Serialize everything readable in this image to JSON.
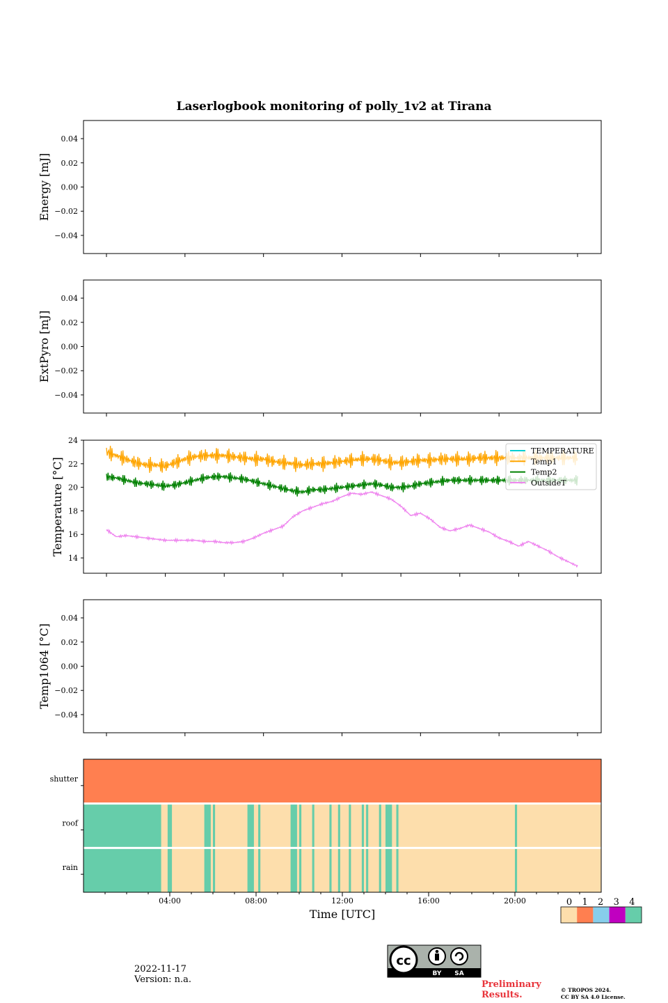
{
  "title": "Laserlogbook monitoring of polly_1v2 at Tirana",
  "chart_data": [
    {
      "type": "line",
      "ylabel": "Energy [mJ]",
      "ylim": [
        -0.055,
        0.055
      ],
      "yticks": [
        "0.04",
        "0.02",
        "0.00",
        "−0.02",
        "−0.04"
      ],
      "ytick_values": [
        0.04,
        0.02,
        0.0,
        -0.02,
        -0.04
      ],
      "series": []
    },
    {
      "type": "line",
      "ylabel": "ExtPyro [mJ]",
      "ylim": [
        -0.055,
        0.055
      ],
      "yticks": [
        "0.04",
        "0.02",
        "0.00",
        "−0.02",
        "−0.04"
      ],
      "ytick_values": [
        0.04,
        0.02,
        0.0,
        -0.02,
        -0.04
      ],
      "series": []
    },
    {
      "type": "line",
      "ylabel": "Temperature [°C]",
      "ylim": [
        12.7,
        24.0
      ],
      "yticks": [
        "24",
        "22",
        "20",
        "18",
        "16",
        "14"
      ],
      "ytick_values": [
        24,
        22,
        20,
        18,
        16,
        14
      ],
      "legend": "top-right",
      "series": [
        {
          "name": "TEMPERATURE",
          "color": "#00ced1",
          "x_hours": [],
          "values": []
        },
        {
          "name": "Temp1",
          "color": "#ffa500",
          "x_hours": [
            0.0,
            0.5,
            1.0,
            1.5,
            2.0,
            2.5,
            3.0,
            3.5,
            4.0,
            4.5,
            5.0,
            5.5,
            6.0,
            6.5,
            7.0,
            7.5,
            8.0,
            8.5,
            9.0,
            9.5,
            10.0,
            10.5,
            11.0,
            11.5,
            12.0,
            12.5,
            13.0,
            13.5,
            14.0,
            14.5,
            15.0,
            15.5,
            16.0,
            16.5,
            17.0,
            17.5,
            18.0,
            18.5,
            19.0,
            19.5,
            20.0,
            20.5,
            21.0,
            21.5,
            22.0,
            22.5,
            23.0,
            23.5,
            24.0
          ],
          "values": [
            23.0,
            22.7,
            22.4,
            22.1,
            21.9,
            21.9,
            21.8,
            22.1,
            22.4,
            22.6,
            22.7,
            22.7,
            22.7,
            22.6,
            22.5,
            22.4,
            22.4,
            22.2,
            22.1,
            22.0,
            21.9,
            22.0,
            22.0,
            22.1,
            22.2,
            22.3,
            22.4,
            22.4,
            22.3,
            22.1,
            22.1,
            22.2,
            22.3,
            22.3,
            22.4,
            22.4,
            22.4,
            22.4,
            22.5,
            22.5,
            22.5,
            22.5,
            22.5,
            22.5,
            22.5,
            22.5,
            22.5,
            22.5,
            22.5
          ]
        },
        {
          "name": "Temp2",
          "color": "#008000",
          "x_hours": [
            0.0,
            0.5,
            1.0,
            1.5,
            2.0,
            2.5,
            3.0,
            3.5,
            4.0,
            4.5,
            5.0,
            5.5,
            6.0,
            6.5,
            7.0,
            7.5,
            8.0,
            8.5,
            9.0,
            9.5,
            10.0,
            10.5,
            11.0,
            11.5,
            12.0,
            12.5,
            13.0,
            13.5,
            14.0,
            14.5,
            15.0,
            15.5,
            16.0,
            16.5,
            17.0,
            17.5,
            18.0,
            18.5,
            19.0,
            19.5,
            20.0,
            20.5,
            21.0,
            21.5,
            22.0,
            22.5,
            23.0,
            23.5,
            24.0
          ],
          "values": [
            20.9,
            20.8,
            20.6,
            20.4,
            20.3,
            20.2,
            20.1,
            20.2,
            20.4,
            20.6,
            20.8,
            20.9,
            20.9,
            20.8,
            20.7,
            20.5,
            20.3,
            20.1,
            19.9,
            19.7,
            19.6,
            19.8,
            19.8,
            19.9,
            20.0,
            20.1,
            20.2,
            20.3,
            20.2,
            20.0,
            20.0,
            20.1,
            20.3,
            20.4,
            20.5,
            20.6,
            20.6,
            20.6,
            20.6,
            20.6,
            20.6,
            20.6,
            20.6,
            20.6,
            20.6,
            20.6,
            20.6,
            20.6,
            20.6
          ]
        },
        {
          "name": "OutsideT",
          "color": "#ee82ee",
          "x_hours": [
            0.0,
            0.5,
            1.0,
            1.5,
            2.0,
            2.5,
            3.0,
            3.5,
            4.0,
            4.5,
            5.0,
            5.5,
            6.0,
            6.5,
            7.0,
            7.5,
            8.0,
            8.5,
            9.0,
            9.5,
            10.0,
            10.5,
            11.0,
            11.5,
            12.0,
            12.5,
            13.0,
            13.5,
            14.0,
            14.5,
            15.0,
            15.5,
            16.0,
            16.5,
            17.0,
            17.5,
            18.0,
            18.5,
            19.0,
            19.5,
            20.0,
            20.5,
            21.0,
            21.5,
            22.0,
            22.5,
            23.0,
            23.5,
            24.0
          ],
          "values": [
            16.4,
            15.8,
            15.9,
            15.8,
            15.7,
            15.6,
            15.5,
            15.5,
            15.5,
            15.5,
            15.4,
            15.4,
            15.3,
            15.3,
            15.4,
            15.7,
            16.1,
            16.4,
            16.7,
            17.5,
            18.0,
            18.3,
            18.6,
            18.8,
            19.2,
            19.5,
            19.4,
            19.6,
            19.3,
            19.0,
            18.4,
            17.6,
            17.8,
            17.3,
            16.6,
            16.3,
            16.5,
            16.8,
            16.5,
            16.2,
            15.7,
            15.4,
            15.0,
            15.4,
            15.0,
            14.6,
            14.1,
            13.7,
            13.3
          ]
        }
      ]
    },
    {
      "type": "line",
      "ylabel": "Temp1064 [°C]",
      "ylim": [
        -0.055,
        0.055
      ],
      "yticks": [
        "0.04",
        "0.02",
        "0.00",
        "−0.02",
        "−0.04"
      ],
      "ytick_values": [
        0.04,
        0.02,
        0.0,
        -0.02,
        -0.04
      ],
      "series": []
    },
    {
      "type": "heatmap",
      "xlabel": "Time [UTC]",
      "xticks": [
        "04:00",
        "08:00",
        "12:00",
        "16:00",
        "20:00"
      ],
      "xtick_hours": [
        4,
        8,
        12,
        16,
        20
      ],
      "xlim_hours": [
        0,
        24
      ],
      "rows": [
        {
          "label": "shutter",
          "base_state": 1,
          "segments": []
        },
        {
          "label": "roof",
          "base_state": 0,
          "segments": [
            [
              0.0,
              3.6
            ],
            [
              3.9,
              4.1
            ],
            [
              5.6,
              5.9
            ],
            [
              6.0,
              6.1
            ],
            [
              7.6,
              7.9
            ],
            [
              8.1,
              8.2
            ],
            [
              9.6,
              9.9
            ],
            [
              10.0,
              10.1
            ],
            [
              10.6,
              10.7
            ],
            [
              11.4,
              11.5
            ],
            [
              11.8,
              11.9
            ],
            [
              12.3,
              12.4
            ],
            [
              12.9,
              13.0
            ],
            [
              13.1,
              13.2
            ],
            [
              13.7,
              13.8
            ],
            [
              14.0,
              14.3
            ],
            [
              14.5,
              14.6
            ],
            [
              20.0,
              20.1
            ]
          ]
        },
        {
          "label": "rain",
          "base_state": 0,
          "segments": [
            [
              0.0,
              3.6
            ],
            [
              3.9,
              4.1
            ],
            [
              5.6,
              5.9
            ],
            [
              6.0,
              6.1
            ],
            [
              7.6,
              7.9
            ],
            [
              8.1,
              8.2
            ],
            [
              9.6,
              9.9
            ],
            [
              10.0,
              10.1
            ],
            [
              10.6,
              10.7
            ],
            [
              11.4,
              11.5
            ],
            [
              11.8,
              11.9
            ],
            [
              12.3,
              12.4
            ],
            [
              12.9,
              13.0
            ],
            [
              13.1,
              13.2
            ],
            [
              13.7,
              13.8
            ],
            [
              14.0,
              14.3
            ],
            [
              14.5,
              14.6
            ],
            [
              20.0,
              20.1
            ]
          ]
        }
      ],
      "segment_state": 4,
      "colorbar": {
        "labels": [
          "0",
          "1",
          "2",
          "3",
          "4"
        ],
        "colors": [
          "#fddeac",
          "#ff7f50",
          "#87ceeb",
          "#c000c0",
          "#66cdaa"
        ]
      }
    }
  ],
  "footer": {
    "date": "2022-11-17",
    "version": "Version: n.a.",
    "preliminary_line1": "Preliminary",
    "preliminary_line2": "Results.",
    "copyright_line1": "© TROPOS 2024.",
    "copyright_line2": "CC BY SA 4.0 License.",
    "cc_badge": {
      "icon": "cc-by-sa-icon",
      "by": "BY",
      "sa": "SA",
      "cc": "cc"
    }
  }
}
